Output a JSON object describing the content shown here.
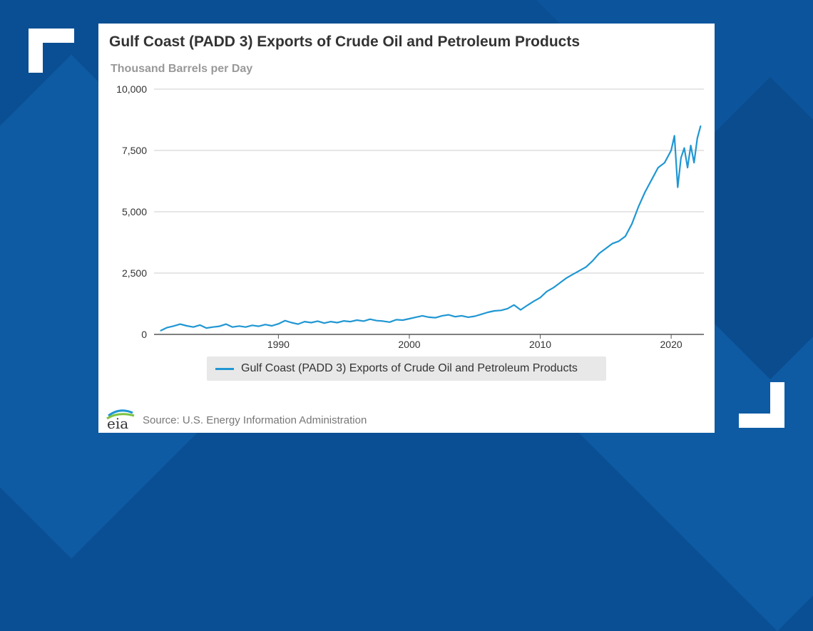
{
  "title": "Gulf Coast (PADD 3) Exports of Crude Oil and Petroleum Products",
  "unit_label": "Thousand Barrels per Day",
  "source": "Source: U.S. Energy Information Administration",
  "logo_text": "eia",
  "colors": {
    "line": "#2097d3",
    "grid": "#cccccc",
    "background": "#0a4f93"
  },
  "chart_data": {
    "type": "line",
    "title": "Gulf Coast (PADD 3) Exports of Crude Oil and Petroleum Products",
    "ylabel": "Thousand Barrels per Day",
    "xlabel": "",
    "ylim": [
      0,
      10000
    ],
    "xlim": [
      1980.5,
      2022.5
    ],
    "yticks": [
      0,
      2500,
      5000,
      7500,
      10000
    ],
    "ytick_labels": [
      "0",
      "2,500",
      "5,000",
      "7,500",
      "10,000"
    ],
    "xticks": [
      1990,
      2000,
      2010,
      2020
    ],
    "xtick_labels": [
      "1990",
      "2000",
      "2010",
      "2020"
    ],
    "grid": true,
    "legend_position": "bottom",
    "series": [
      {
        "name": "Gulf Coast (PADD 3) Exports of Crude Oil and Petroleum Products",
        "x": [
          1981.0,
          1981.5,
          1982.0,
          1982.5,
          1983.0,
          1983.5,
          1984.0,
          1984.5,
          1985.0,
          1985.5,
          1986.0,
          1986.5,
          1987.0,
          1987.5,
          1988.0,
          1988.5,
          1989.0,
          1989.5,
          1990.0,
          1990.5,
          1991.0,
          1991.5,
          1992.0,
          1992.5,
          1993.0,
          1993.5,
          1994.0,
          1994.5,
          1995.0,
          1995.5,
          1996.0,
          1996.5,
          1997.0,
          1997.5,
          1998.0,
          1998.5,
          1999.0,
          1999.5,
          2000.0,
          2000.5,
          2001.0,
          2001.5,
          2002.0,
          2002.5,
          2003.0,
          2003.5,
          2004.0,
          2004.5,
          2005.0,
          2005.5,
          2006.0,
          2006.5,
          2007.0,
          2007.5,
          2008.0,
          2008.5,
          2009.0,
          2009.5,
          2010.0,
          2010.5,
          2011.0,
          2011.5,
          2012.0,
          2012.5,
          2013.0,
          2013.5,
          2014.0,
          2014.5,
          2015.0,
          2015.5,
          2016.0,
          2016.5,
          2017.0,
          2017.5,
          2018.0,
          2018.5,
          2019.0,
          2019.5,
          2020.0,
          2020.25,
          2020.5,
          2020.75,
          2021.0,
          2021.25,
          2021.5,
          2021.75,
          2022.0,
          2022.25
        ],
        "values": [
          150,
          280,
          340,
          420,
          350,
          300,
          380,
          260,
          300,
          330,
          420,
          300,
          340,
          300,
          370,
          330,
          400,
          350,
          430,
          560,
          480,
          420,
          520,
          480,
          540,
          460,
          520,
          480,
          550,
          520,
          580,
          540,
          620,
          560,
          540,
          500,
          600,
          580,
          640,
          700,
          760,
          700,
          680,
          760,
          800,
          720,
          760,
          700,
          740,
          820,
          900,
          960,
          980,
          1050,
          1200,
          1000,
          1180,
          1350,
          1500,
          1750,
          1900,
          2100,
          2300,
          2450,
          2600,
          2750,
          3000,
          3300,
          3500,
          3700,
          3800,
          4000,
          4500,
          5200,
          5800,
          6300,
          6800,
          7000,
          7500,
          8100,
          6000,
          7200,
          7600,
          6800,
          7700,
          7000,
          8000,
          8500
        ]
      }
    ]
  },
  "legend": {
    "label": "Gulf Coast (PADD 3) Exports of Crude Oil and Petroleum Products"
  }
}
